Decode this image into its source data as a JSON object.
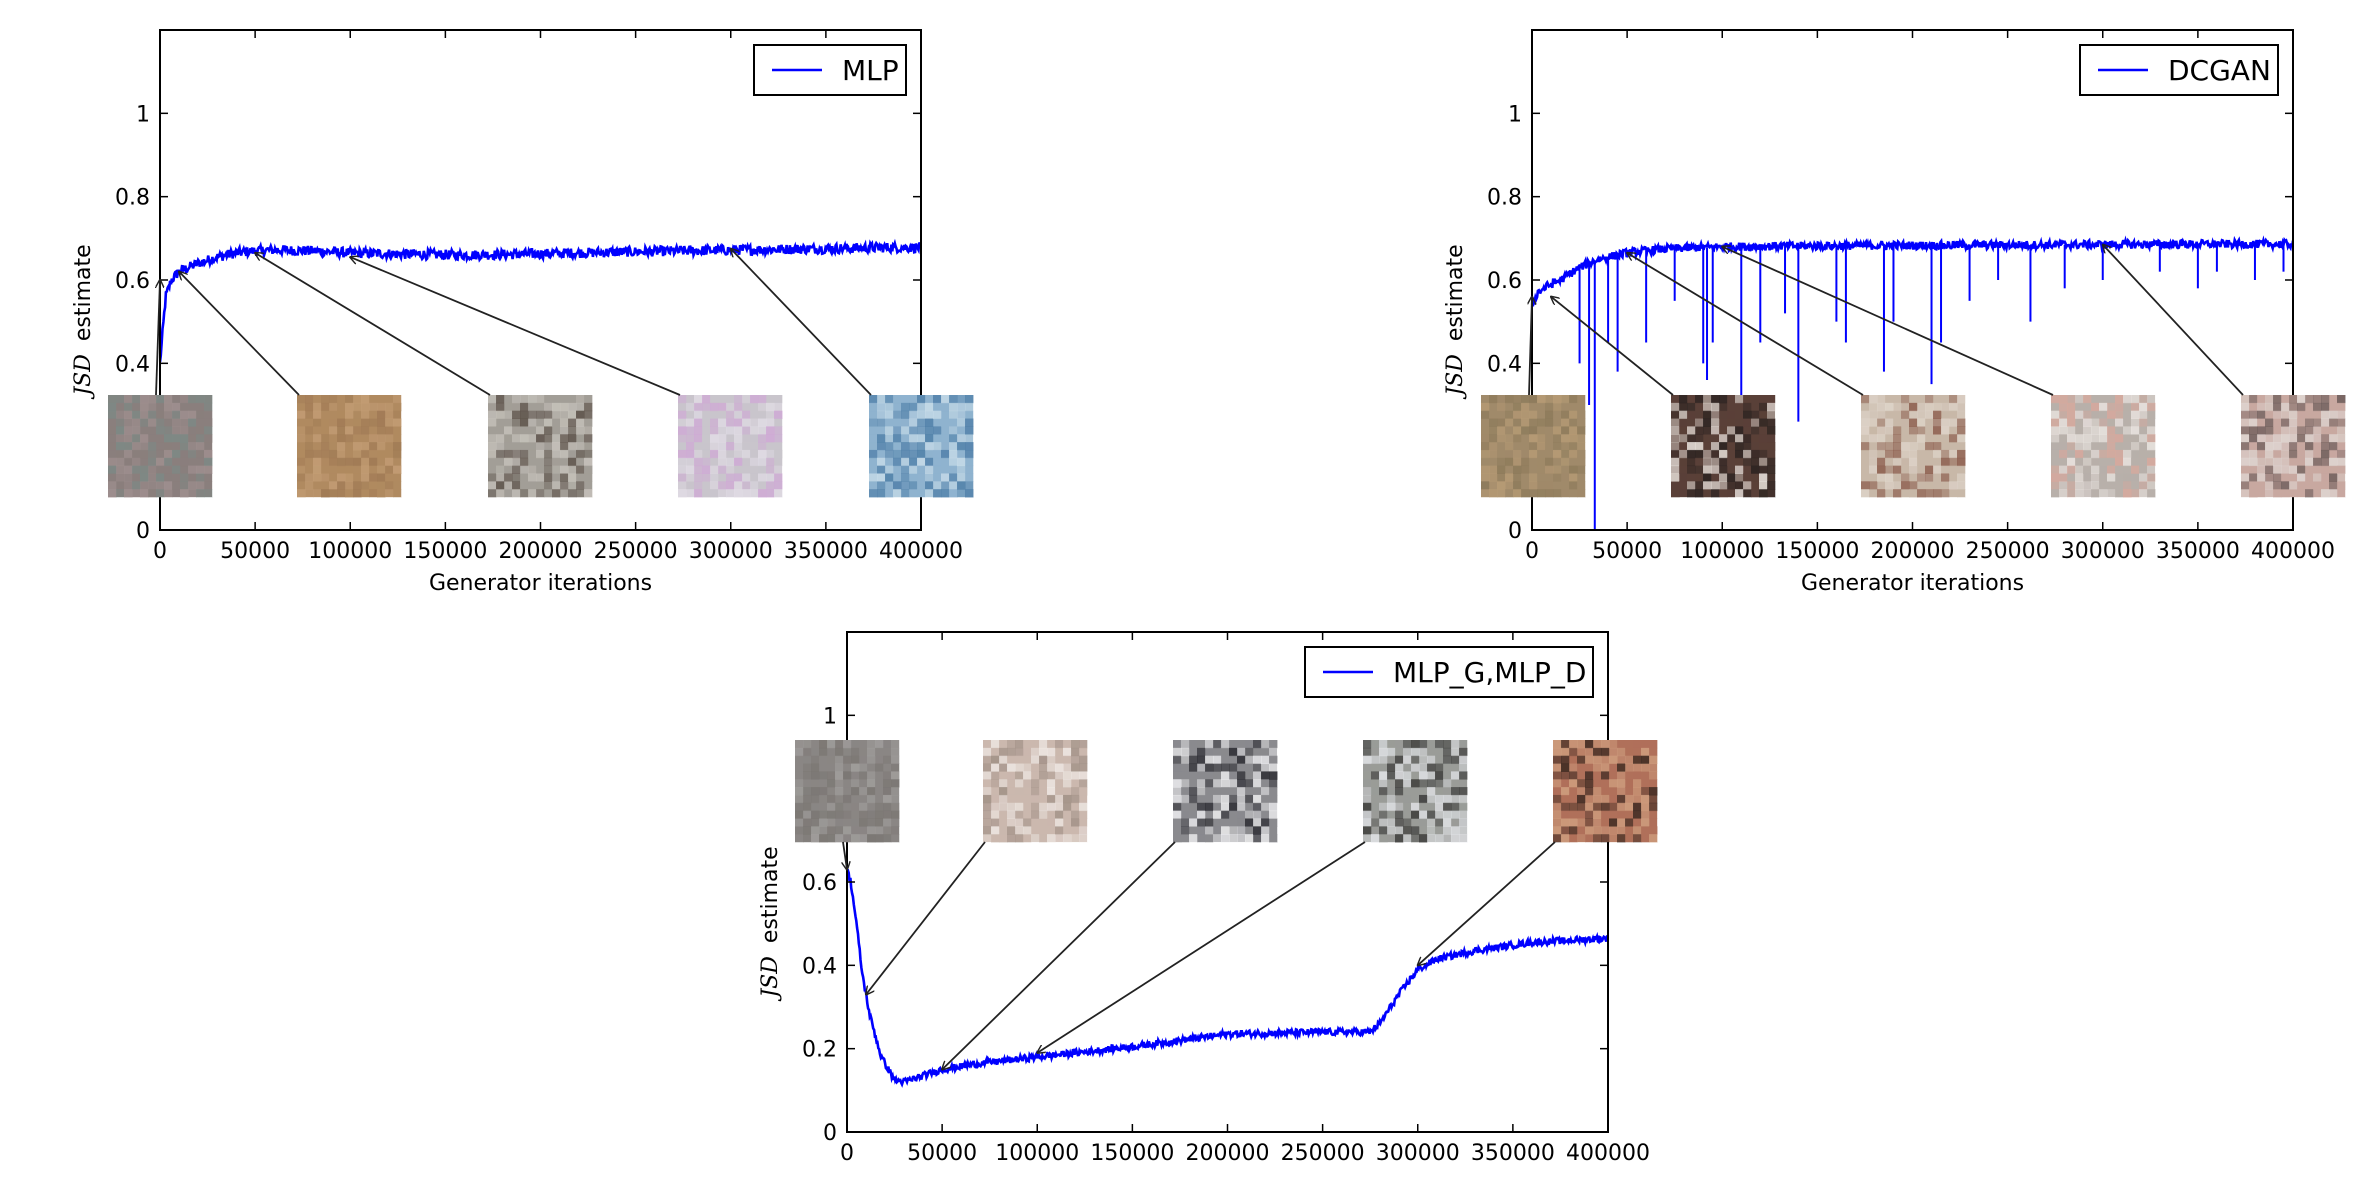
{
  "chart_data": [
    {
      "type": "line",
      "series": [
        {
          "name": "MLP",
          "color": "#0000ff",
          "x": [
            0,
            3000,
            6000,
            10000,
            20000,
            30000,
            40000,
            50000,
            60000,
            80000,
            100000,
            130000,
            160000,
            190000,
            220000,
            250000,
            280000,
            300000,
            330000,
            360000,
            380000,
            400000
          ],
          "y": [
            0.4,
            0.56,
            0.6,
            0.62,
            0.64,
            0.655,
            0.665,
            0.67,
            0.672,
            0.67,
            0.665,
            0.662,
            0.66,
            0.662,
            0.665,
            0.668,
            0.67,
            0.672,
            0.674,
            0.676,
            0.678,
            0.678
          ]
        }
      ],
      "xlabel": "Generator iterations",
      "ylabel_math": "JSD",
      "ylabel_text": "estimate",
      "xlim": [
        0,
        400000
      ],
      "ylim": [
        0.0,
        1.2
      ],
      "xticks": [
        0,
        50000,
        100000,
        150000,
        200000,
        250000,
        300000,
        350000,
        400000
      ],
      "yticks": [
        0.0,
        0.4,
        0.6,
        0.8,
        1.0
      ],
      "legend": "top-right",
      "grid": false,
      "noise": 0.012,
      "spikes": [],
      "annotations": [
        {
          "x": 0,
          "y": 0.6
        },
        {
          "x": 10000,
          "y": 0.62
        },
        {
          "x": 50000,
          "y": 0.665
        },
        {
          "x": 100000,
          "y": 0.655
        },
        {
          "x": 300000,
          "y": 0.675
        }
      ],
      "thumb_colors": [
        [
          "#8a7f7d",
          "#a09090",
          "#7c8a86"
        ],
        [
          "#b08a60",
          "#a07a55",
          "#c49e76"
        ],
        [
          "#a29e97",
          "#5b5048",
          "#c8c4bd"
        ],
        [
          "#c9c5cc",
          "#d0a8d6",
          "#e2dde6"
        ],
        [
          "#8fb3cf",
          "#c9dde9",
          "#4f7fa8"
        ]
      ]
    },
    {
      "type": "line",
      "series": [
        {
          "name": "DCGAN",
          "color": "#0000ff",
          "x": [
            0,
            3000,
            8000,
            15000,
            25000,
            35000,
            50000,
            70000,
            100000,
            150000,
            200000,
            250000,
            300000,
            350000,
            400000
          ],
          "y": [
            0.54,
            0.57,
            0.585,
            0.6,
            0.63,
            0.65,
            0.665,
            0.675,
            0.68,
            0.682,
            0.683,
            0.684,
            0.685,
            0.686,
            0.686
          ]
        }
      ],
      "xlabel": "Generator iterations",
      "ylabel_math": "JSD",
      "ylabel_text": "estimate",
      "xlim": [
        0,
        400000
      ],
      "ylim": [
        0.0,
        1.2
      ],
      "xticks": [
        0,
        50000,
        100000,
        150000,
        200000,
        250000,
        300000,
        350000,
        400000
      ],
      "yticks": [
        0.0,
        0.4,
        0.6,
        0.8,
        1.0
      ],
      "legend": "top-right",
      "grid": false,
      "noise": 0.01,
      "spikes": [
        [
          33000,
          0.0
        ],
        [
          30000,
          0.3
        ],
        [
          25000,
          0.4
        ],
        [
          40000,
          0.45
        ],
        [
          45000,
          0.38
        ],
        [
          60000,
          0.45
        ],
        [
          75000,
          0.55
        ],
        [
          90000,
          0.4
        ],
        [
          92000,
          0.36
        ],
        [
          95000,
          0.45
        ],
        [
          110000,
          0.3
        ],
        [
          120000,
          0.45
        ],
        [
          133000,
          0.52
        ],
        [
          140000,
          0.26
        ],
        [
          160000,
          0.5
        ],
        [
          165000,
          0.45
        ],
        [
          185000,
          0.38
        ],
        [
          190000,
          0.5
        ],
        [
          210000,
          0.35
        ],
        [
          215000,
          0.45
        ],
        [
          230000,
          0.55
        ],
        [
          245000,
          0.6
        ],
        [
          262000,
          0.5
        ],
        [
          280000,
          0.58
        ],
        [
          300000,
          0.6
        ],
        [
          330000,
          0.62
        ],
        [
          350000,
          0.58
        ],
        [
          360000,
          0.62
        ],
        [
          380000,
          0.6
        ],
        [
          395000,
          0.62
        ]
      ],
      "annotations": [
        {
          "x": 0,
          "y": 0.56
        },
        {
          "x": 10000,
          "y": 0.56
        },
        {
          "x": 50000,
          "y": 0.665
        },
        {
          "x": 100000,
          "y": 0.68
        },
        {
          "x": 300000,
          "y": 0.685
        }
      ],
      "thumb_colors": [
        [
          "#a08a6a",
          "#8c7a5a",
          "#b89c76"
        ],
        [
          "#5a4038",
          "#ece6e0",
          "#2a2220"
        ],
        [
          "#c8b8a8",
          "#8a5a4a",
          "#e0d6cc"
        ],
        [
          "#b8b0aa",
          "#d8a89c",
          "#ece6e2"
        ],
        [
          "#c8a8a0",
          "#e0d8d4",
          "#6a5a58"
        ]
      ]
    },
    {
      "type": "line",
      "series": [
        {
          "name": "MLP_G,MLP_D",
          "color": "#0000ff",
          "x": [
            0,
            2000,
            5000,
            8000,
            12000,
            18000,
            25000,
            30000,
            40000,
            50000,
            70000,
            100000,
            150000,
            200000,
            250000,
            275000,
            280000,
            290000,
            300000,
            310000,
            330000,
            360000,
            400000
          ],
          "y": [
            0.63,
            0.6,
            0.5,
            0.38,
            0.28,
            0.18,
            0.125,
            0.12,
            0.135,
            0.15,
            0.165,
            0.18,
            0.205,
            0.235,
            0.24,
            0.24,
            0.26,
            0.33,
            0.39,
            0.415,
            0.435,
            0.455,
            0.465
          ]
        }
      ],
      "xlabel": "",
      "ylabel_math": "JSD",
      "ylabel_text": "estimate",
      "xlim": [
        0,
        400000
      ],
      "ylim": [
        0.0,
        1.2
      ],
      "xticks": [
        0,
        50000,
        100000,
        150000,
        200000,
        250000,
        300000,
        350000,
        400000
      ],
      "yticks": [
        0.0,
        0.2,
        0.4,
        0.6,
        1.0
      ],
      "legend": "top-right",
      "grid": false,
      "noise": 0.008,
      "spikes": [],
      "annotations": [
        {
          "x": 0,
          "y": 0.63
        },
        {
          "x": 10000,
          "y": 0.33
        },
        {
          "x": 50000,
          "y": 0.15
        },
        {
          "x": 100000,
          "y": 0.19
        },
        {
          "x": 300000,
          "y": 0.4
        }
      ],
      "thumb_colors": [
        [
          "#8a8684",
          "#a2a09e",
          "#7a7672"
        ],
        [
          "#cbb8ae",
          "#f0eae6",
          "#a09086"
        ],
        [
          "#8a8a8e",
          "#f2f2f4",
          "#2a2a30"
        ],
        [
          "#9a9c98",
          "#e4e6ea",
          "#3a3a38"
        ],
        [
          "#b0705a",
          "#3a2820",
          "#d0a080"
        ]
      ]
    }
  ]
}
